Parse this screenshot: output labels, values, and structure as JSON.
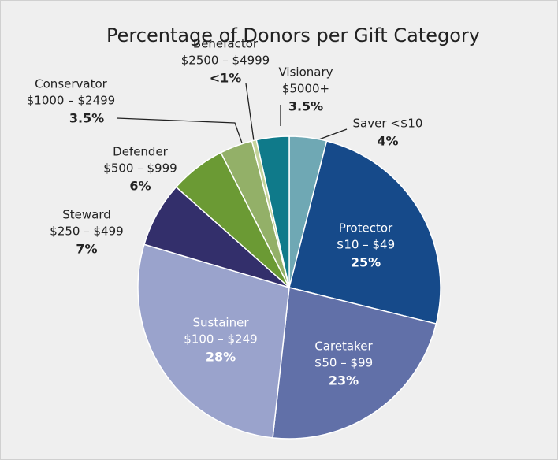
{
  "chart_data": {
    "type": "pie",
    "title": "Percentage of Donors per Gift Category",
    "categories": [
      "Saver <$10",
      "Protector",
      "Caretaker",
      "Sustainer",
      "Steward",
      "Defender",
      "Conservator",
      "Benefactor",
      "Visionary"
    ],
    "ranges": [
      null,
      "$10 – $49",
      "$50 – $99",
      "$100 – $249",
      "$250 – $499",
      "$500 – $999",
      "$1000 – $2499",
      "$2500 – $4999",
      "$5000+"
    ],
    "values": [
      4,
      25,
      23,
      28,
      7,
      6,
      3.5,
      0.5,
      3.5
    ],
    "value_labels": [
      "4%",
      "25%",
      "23%",
      "28%",
      "7%",
      "6%",
      "3.5%",
      "<1%",
      "3.5%"
    ],
    "colors": [
      "#6fa8b4",
      "#164a8a",
      "#6170a8",
      "#9aa3cc",
      "#332f6b",
      "#6b9a34",
      "#93b068",
      "#c4d39a",
      "#0f7a8a"
    ]
  }
}
